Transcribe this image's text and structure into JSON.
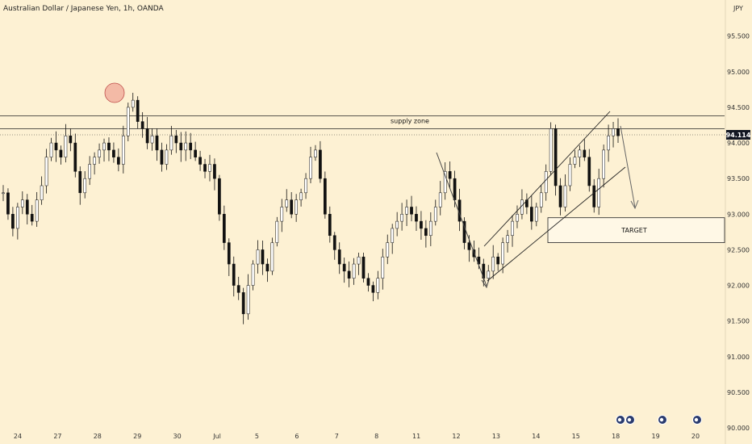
{
  "title": "Australian Dollar / Japanese Yen, 1h, OANDA",
  "currency": "JPY",
  "chart_data": {
    "type": "line",
    "title": "Australian Dollar / Japanese Yen, 1h, OANDA",
    "y_ticks": [
      "95.500",
      "95.000",
      "94.500",
      "94.000",
      "93.500",
      "93.000",
      "92.500",
      "92.000",
      "91.500",
      "91.000",
      "90.500",
      "90.000"
    ],
    "x_ticks": [
      "24",
      "27",
      "28",
      "29",
      "30",
      "Jul",
      "5",
      "6",
      "7",
      "8",
      "11",
      "12",
      "13",
      "14",
      "15",
      "18",
      "19",
      "20"
    ],
    "ylim": [
      90.0,
      95.78
    ],
    "current_price": "94.114",
    "supply_zone_label": "supply zone",
    "supply_zone": [
      94.2,
      94.38
    ],
    "target_label": "TARGET",
    "target_zone": [
      92.6,
      92.95
    ],
    "series": [
      {
        "values": [
          93.3,
          93.0,
          92.8,
          93.1,
          93.2,
          93.0,
          92.9,
          93.2,
          93.4,
          93.8,
          94.0,
          93.9,
          93.8,
          94.1,
          94.0,
          93.6,
          93.3,
          93.5,
          93.7,
          93.8,
          93.9,
          94.0,
          93.9,
          93.8,
          93.7,
          94.1,
          94.5,
          94.6,
          94.3,
          94.2,
          94.0,
          94.1,
          93.9,
          93.7,
          93.9,
          94.1,
          94.0,
          93.9,
          94.0,
          93.9,
          93.8,
          93.7,
          93.6,
          93.7,
          93.5,
          93.0,
          92.6,
          92.3,
          92.0,
          91.9,
          91.6,
          92.0,
          92.3,
          92.5,
          92.3,
          92.2,
          92.6,
          92.9,
          93.1,
          93.2,
          93.0,
          93.2,
          93.3,
          93.5,
          93.8,
          93.9,
          93.5,
          93.0,
          92.7,
          92.5,
          92.3,
          92.2,
          92.1,
          92.3,
          92.4,
          92.1,
          92.0,
          91.9,
          92.1,
          92.4,
          92.6,
          92.8,
          92.9,
          93.0,
          93.1,
          93.0,
          92.9,
          92.8,
          92.7,
          92.9,
          93.1,
          93.3,
          93.6,
          93.5,
          93.2,
          92.9,
          92.6,
          92.5,
          92.4,
          92.3,
          92.1,
          92.2,
          92.4,
          92.3,
          92.6,
          92.7,
          92.9,
          93.0,
          93.2,
          93.1,
          92.9,
          93.1,
          93.3,
          93.6,
          94.2,
          93.4,
          93.1,
          93.4,
          93.7,
          93.8,
          93.9,
          93.8,
          93.4,
          93.1,
          93.5,
          93.9,
          94.1,
          94.2,
          94.1
        ]
      }
    ]
  }
}
